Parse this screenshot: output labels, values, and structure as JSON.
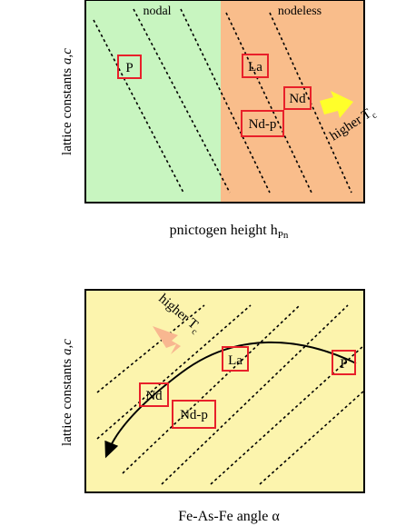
{
  "panel_top": {
    "region_left_label": "nodal",
    "region_right_label": "nodeless",
    "x_axis_label": "pnictogen height h",
    "x_axis_sub": "Pn",
    "y_axis_label_prefix": "lattice constants ",
    "y_axis_label_vars": "a,c",
    "arrow_label_prefix": "higher T",
    "arrow_label_sub": "c",
    "boxes": [
      "P",
      "La",
      "Nd",
      "Nd-p"
    ],
    "colors": {
      "left_region": "#c8f5c0",
      "right_region": "#f9bd8b",
      "arrow": "#ffff2a"
    }
  },
  "panel_bottom": {
    "x_axis_label_prefix": "Fe-As-Fe angle ",
    "x_axis_symbol": "α",
    "y_axis_label_prefix": "lattice constants ",
    "y_axis_label_vars": "a,c",
    "arrow_label_prefix": "higher T",
    "arrow_label_sub": "c",
    "boxes": [
      "La",
      "P",
      "Nd",
      "Nd-p"
    ],
    "colors": {
      "background": "#fcf4ad",
      "arrow": "#f8b790"
    }
  },
  "colors": {
    "box_border": "#e8202a",
    "frame": "#000000"
  }
}
